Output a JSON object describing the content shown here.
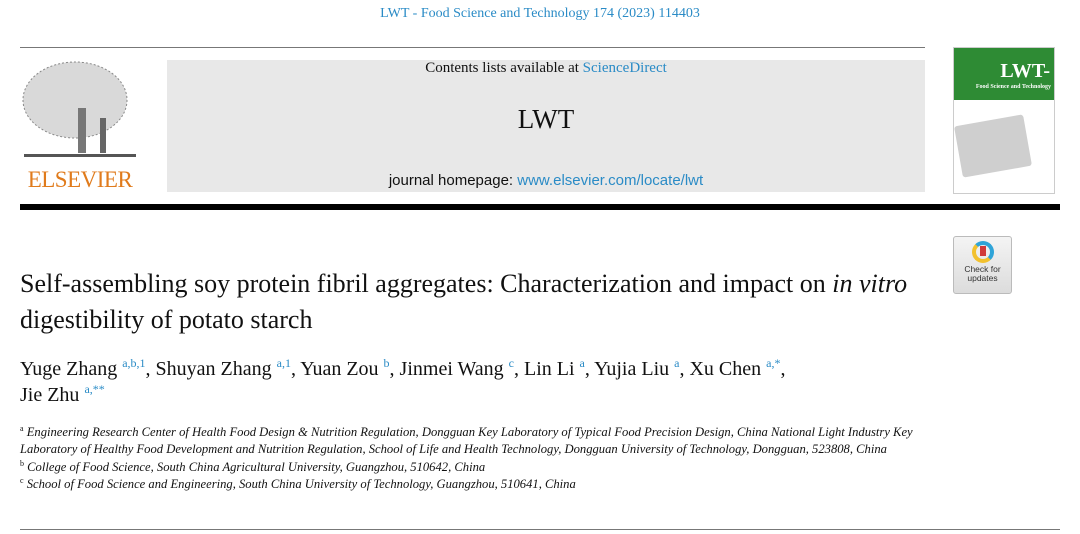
{
  "journal_reference": "LWT - Food Science and Technology 174 (2023) 114403",
  "header": {
    "publisher_logo_text": "ELSEVIER",
    "contents_prefix": "Contents lists available at ",
    "contents_link": "ScienceDirect",
    "journal_name": "LWT",
    "homepage_prefix": "journal homepage: ",
    "homepage_link": "www.elsevier.com/locate/lwt",
    "cover_title": "LWT-",
    "cover_subtitle": "Food Science and Technology"
  },
  "badge": {
    "line1": "Check for",
    "line2": "updates"
  },
  "article": {
    "title_part1": "Self-assembling soy protein fibril aggregates: Characterization and impact on ",
    "title_italic": "in vitro",
    "title_part2": " digestibility of potato starch",
    "authors": [
      {
        "name": "Yuge Zhang",
        "sup": "a,b,1"
      },
      {
        "name": "Shuyan Zhang",
        "sup": "a,1"
      },
      {
        "name": "Yuan Zou",
        "sup": "b"
      },
      {
        "name": "Jinmei Wang",
        "sup": "c"
      },
      {
        "name": "Lin Li",
        "sup": "a"
      },
      {
        "name": "Yujia Liu",
        "sup": "a"
      },
      {
        "name": "Xu Chen",
        "sup": "a,*"
      },
      {
        "name": "Jie Zhu",
        "sup": "a,**"
      }
    ],
    "affiliations": [
      {
        "mark": "a",
        "text": "Engineering Research Center of Health Food Design & Nutrition Regulation, Dongguan Key Laboratory of Typical Food Precision Design, China National Light Industry Key Laboratory of Healthy Food Development and Nutrition Regulation, School of Life and Health Technology, Dongguan University of Technology, Dongguan, 523808, China"
      },
      {
        "mark": "b",
        "text": "College of Food Science, South China Agricultural University, Guangzhou, 510642, China"
      },
      {
        "mark": "c",
        "text": "School of Food Science and Engineering, South China University of Technology, Guangzhou, 510641, China"
      }
    ]
  },
  "colors": {
    "link": "#2a8bc6",
    "elsevier_orange": "#e07b1c",
    "cover_green": "#2e8b34"
  }
}
